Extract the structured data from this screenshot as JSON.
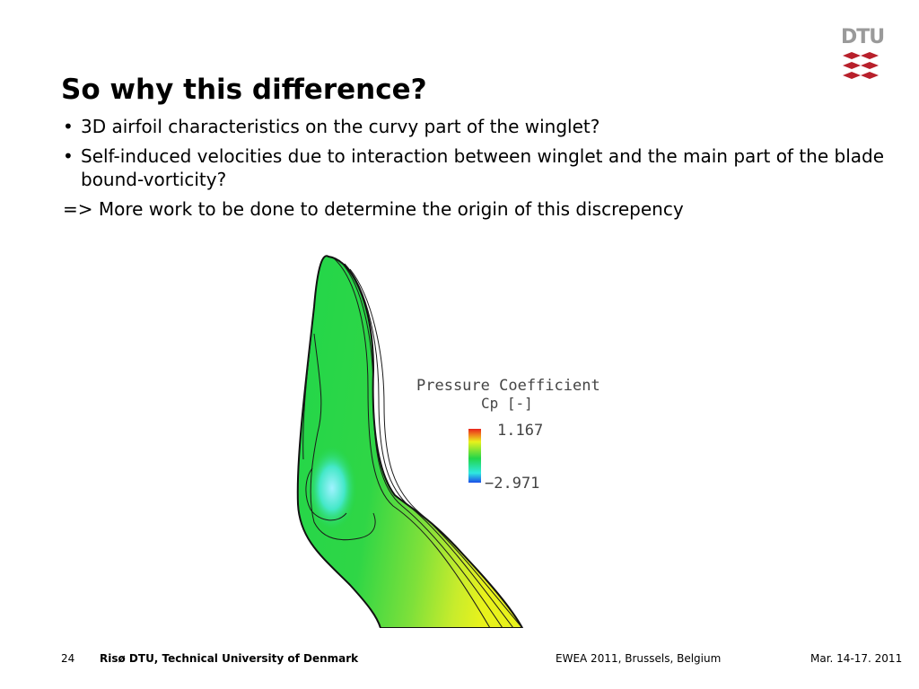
{
  "logo": {
    "text": "DTU"
  },
  "slide": {
    "title": "So why this difference?",
    "bullets": [
      "3D airfoil characteristics on the curvy part of the winglet?",
      "Self-induced velocities due to interaction between winglet and the main part of the blade bound-vorticity?"
    ],
    "bullet_marker": "•",
    "conclusion": "=> More work to be done to determine the origin of this discrepency"
  },
  "figure": {
    "legend_title": "Pressure Coefficient",
    "legend_subtitle": "Cp [-]",
    "legend_max": "1.167",
    "legend_min": "−2.971",
    "colors": {
      "red": "#e8241c",
      "orange": "#f08a1c",
      "yellow": "#e8f21c",
      "green": "#22d64a",
      "cyan": "#2ee8e0",
      "blue": "#1c4ee8"
    }
  },
  "footer": {
    "page_number": "24",
    "organization": "Risø DTU, Technical University of Denmark",
    "event": "EWEA 2011, Brussels, Belgium",
    "date": "Mar. 14-17. 2011"
  }
}
